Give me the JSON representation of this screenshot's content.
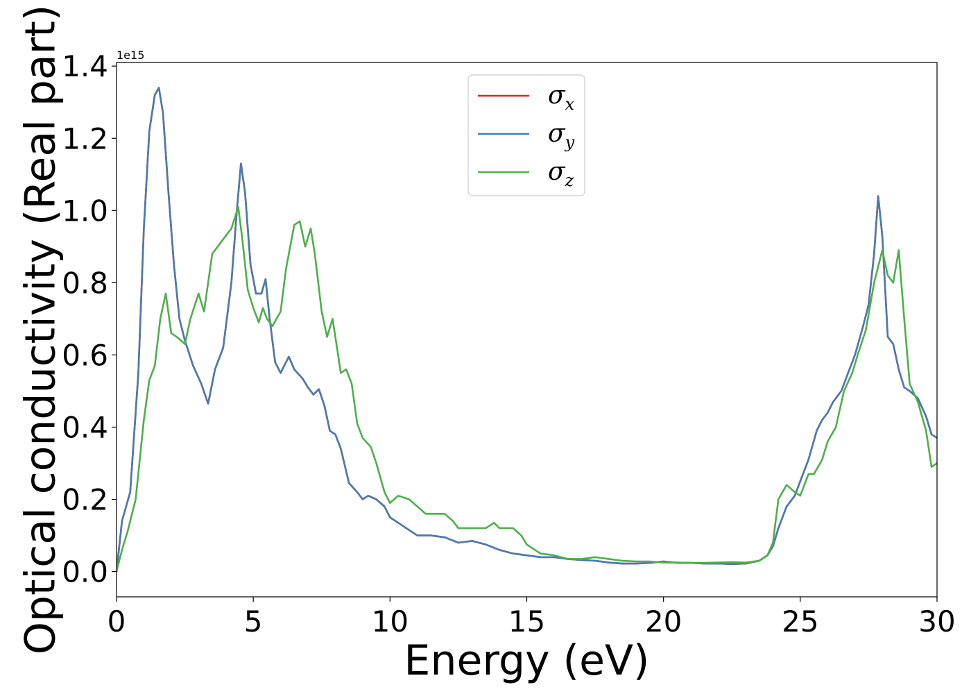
{
  "chart_data": {
    "type": "line",
    "title": "",
    "xlabel": "Energy (eV)",
    "ylabel": "Optical conductivity (Real part)",
    "y_offset_label": "1e15",
    "xlim": [
      0,
      30
    ],
    "ylim": [
      -0.07,
      1.41
    ],
    "x_ticks": [
      0,
      5,
      10,
      15,
      20,
      25,
      30
    ],
    "x_tick_labels": [
      "0",
      "5",
      "10",
      "15",
      "20",
      "25",
      "30"
    ],
    "y_ticks": [
      0.0,
      0.2,
      0.4,
      0.6,
      0.8,
      1.0,
      1.2,
      1.4
    ],
    "y_tick_labels": [
      "0.0",
      "0.2",
      "0.4",
      "0.6",
      "0.8",
      "1.0",
      "1.2",
      "1.4"
    ],
    "grid": false,
    "legend_position": "upper center",
    "series": [
      {
        "name": "σx",
        "symbol": "σ",
        "subscript": "x",
        "color": "#d62728",
        "x": [
          0,
          0.2,
          0.5,
          0.8,
          1.0,
          1.2,
          1.4,
          1.55,
          1.7,
          1.9,
          2.1,
          2.3,
          2.5,
          2.8,
          3.1,
          3.35,
          3.6,
          3.9,
          4.2,
          4.4,
          4.55,
          4.7,
          4.9,
          5.1,
          5.3,
          5.45,
          5.6,
          5.8,
          6.0,
          6.3,
          6.5,
          6.8,
          7.0,
          7.2,
          7.4,
          7.6,
          7.8,
          8.0,
          8.2,
          8.5,
          8.8,
          9.0,
          9.2,
          9.5,
          9.8,
          10.0,
          10.3,
          10.7,
          11.0,
          11.5,
          12.0,
          12.5,
          13.0,
          13.5,
          14.0,
          14.5,
          15.0,
          15.5,
          16.0,
          16.5,
          17.0,
          17.5,
          18.0,
          18.5,
          19.0,
          19.5,
          20.0,
          20.5,
          21.0,
          21.5,
          22.0,
          22.5,
          23.0,
          23.5,
          23.8,
          24.0,
          24.2,
          24.5,
          24.8,
          25.0,
          25.3,
          25.6,
          25.8,
          26.0,
          26.2,
          26.5,
          26.8,
          27.0,
          27.3,
          27.5,
          27.7,
          27.85,
          28.0,
          28.2,
          28.4,
          28.6,
          28.8,
          29.0,
          29.3,
          29.6,
          29.8,
          30.0
        ],
        "values": [
          0.0,
          0.14,
          0.22,
          0.55,
          0.95,
          1.22,
          1.32,
          1.34,
          1.27,
          1.05,
          0.85,
          0.7,
          0.64,
          0.57,
          0.52,
          0.465,
          0.56,
          0.62,
          0.8,
          1.0,
          1.13,
          1.05,
          0.85,
          0.77,
          0.77,
          0.81,
          0.7,
          0.58,
          0.55,
          0.595,
          0.56,
          0.535,
          0.51,
          0.49,
          0.505,
          0.46,
          0.39,
          0.38,
          0.34,
          0.245,
          0.22,
          0.2,
          0.21,
          0.2,
          0.18,
          0.15,
          0.135,
          0.115,
          0.1,
          0.1,
          0.095,
          0.08,
          0.085,
          0.075,
          0.06,
          0.05,
          0.045,
          0.04,
          0.04,
          0.035,
          0.032,
          0.03,
          0.025,
          0.022,
          0.022,
          0.024,
          0.028,
          0.024,
          0.024,
          0.022,
          0.022,
          0.021,
          0.022,
          0.03,
          0.045,
          0.07,
          0.12,
          0.18,
          0.21,
          0.25,
          0.31,
          0.39,
          0.42,
          0.44,
          0.47,
          0.5,
          0.56,
          0.6,
          0.68,
          0.74,
          0.88,
          1.04,
          0.93,
          0.65,
          0.63,
          0.56,
          0.51,
          0.5,
          0.48,
          0.43,
          0.38,
          0.37
        ]
      },
      {
        "name": "σy",
        "symbol": "σ",
        "subscript": "y",
        "color": "#4a7bb0",
        "x": [
          0,
          0.2,
          0.5,
          0.8,
          1.0,
          1.2,
          1.4,
          1.55,
          1.7,
          1.9,
          2.1,
          2.3,
          2.5,
          2.8,
          3.1,
          3.35,
          3.6,
          3.9,
          4.2,
          4.4,
          4.55,
          4.7,
          4.9,
          5.1,
          5.3,
          5.45,
          5.6,
          5.8,
          6.0,
          6.3,
          6.5,
          6.8,
          7.0,
          7.2,
          7.4,
          7.6,
          7.8,
          8.0,
          8.2,
          8.5,
          8.8,
          9.0,
          9.2,
          9.5,
          9.8,
          10.0,
          10.3,
          10.7,
          11.0,
          11.5,
          12.0,
          12.5,
          13.0,
          13.5,
          14.0,
          14.5,
          15.0,
          15.5,
          16.0,
          16.5,
          17.0,
          17.5,
          18.0,
          18.5,
          19.0,
          19.5,
          20.0,
          20.5,
          21.0,
          21.5,
          22.0,
          22.5,
          23.0,
          23.5,
          23.8,
          24.0,
          24.2,
          24.5,
          24.8,
          25.0,
          25.3,
          25.6,
          25.8,
          26.0,
          26.2,
          26.5,
          26.8,
          27.0,
          27.3,
          27.5,
          27.7,
          27.85,
          28.0,
          28.2,
          28.4,
          28.6,
          28.8,
          29.0,
          29.3,
          29.6,
          29.8,
          30.0
        ],
        "values": [
          0.0,
          0.14,
          0.22,
          0.55,
          0.95,
          1.22,
          1.32,
          1.34,
          1.27,
          1.05,
          0.85,
          0.7,
          0.64,
          0.57,
          0.52,
          0.465,
          0.56,
          0.62,
          0.8,
          1.0,
          1.13,
          1.05,
          0.85,
          0.77,
          0.77,
          0.81,
          0.7,
          0.58,
          0.55,
          0.595,
          0.56,
          0.535,
          0.51,
          0.49,
          0.505,
          0.46,
          0.39,
          0.38,
          0.34,
          0.245,
          0.22,
          0.2,
          0.21,
          0.2,
          0.18,
          0.15,
          0.135,
          0.115,
          0.1,
          0.1,
          0.095,
          0.08,
          0.085,
          0.075,
          0.06,
          0.05,
          0.045,
          0.04,
          0.04,
          0.035,
          0.032,
          0.03,
          0.025,
          0.022,
          0.022,
          0.024,
          0.028,
          0.024,
          0.024,
          0.022,
          0.022,
          0.021,
          0.022,
          0.03,
          0.045,
          0.07,
          0.12,
          0.18,
          0.21,
          0.25,
          0.31,
          0.39,
          0.42,
          0.44,
          0.47,
          0.5,
          0.56,
          0.6,
          0.68,
          0.74,
          0.88,
          1.04,
          0.93,
          0.65,
          0.63,
          0.56,
          0.51,
          0.5,
          0.48,
          0.43,
          0.38,
          0.37
        ]
      },
      {
        "name": "σz",
        "symbol": "σ",
        "subscript": "z",
        "color": "#4daf4a",
        "x": [
          0,
          0.2,
          0.4,
          0.7,
          1.0,
          1.2,
          1.4,
          1.6,
          1.8,
          2.0,
          2.2,
          2.5,
          2.7,
          3.0,
          3.2,
          3.5,
          3.7,
          4.0,
          4.2,
          4.45,
          4.6,
          4.8,
          5.0,
          5.2,
          5.35,
          5.5,
          5.7,
          6.0,
          6.2,
          6.5,
          6.7,
          6.9,
          7.1,
          7.25,
          7.5,
          7.7,
          7.9,
          8.0,
          8.2,
          8.4,
          8.6,
          8.8,
          9.0,
          9.3,
          9.5,
          9.8,
          10.0,
          10.3,
          10.7,
          11.0,
          11.3,
          11.7,
          12.0,
          12.3,
          12.5,
          13.0,
          13.5,
          13.8,
          14.0,
          14.5,
          14.8,
          15.0,
          15.5,
          16.0,
          16.5,
          17.0,
          17.5,
          18.0,
          18.5,
          19.0,
          19.5,
          20.0,
          20.5,
          21.0,
          21.5,
          22.0,
          22.5,
          23.0,
          23.5,
          23.8,
          24.0,
          24.2,
          24.5,
          24.8,
          25.0,
          25.3,
          25.5,
          25.8,
          26.0,
          26.3,
          26.6,
          26.9,
          27.1,
          27.4,
          27.7,
          28.0,
          28.2,
          28.4,
          28.6,
          28.8,
          29.0,
          29.3,
          29.6,
          29.8,
          30.0
        ],
        "values": [
          0.0,
          0.06,
          0.11,
          0.2,
          0.42,
          0.53,
          0.57,
          0.7,
          0.77,
          0.66,
          0.65,
          0.63,
          0.7,
          0.77,
          0.72,
          0.88,
          0.9,
          0.93,
          0.95,
          1.01,
          0.92,
          0.78,
          0.73,
          0.69,
          0.73,
          0.7,
          0.68,
          0.72,
          0.84,
          0.96,
          0.97,
          0.9,
          0.95,
          0.88,
          0.72,
          0.65,
          0.7,
          0.65,
          0.55,
          0.56,
          0.52,
          0.41,
          0.37,
          0.345,
          0.3,
          0.22,
          0.19,
          0.21,
          0.2,
          0.18,
          0.16,
          0.16,
          0.16,
          0.14,
          0.12,
          0.12,
          0.12,
          0.135,
          0.12,
          0.12,
          0.1,
          0.075,
          0.05,
          0.045,
          0.035,
          0.035,
          0.04,
          0.035,
          0.03,
          0.028,
          0.028,
          0.025,
          0.025,
          0.024,
          0.024,
          0.025,
          0.026,
          0.025,
          0.03,
          0.045,
          0.08,
          0.2,
          0.24,
          0.22,
          0.21,
          0.27,
          0.27,
          0.31,
          0.36,
          0.4,
          0.5,
          0.55,
          0.6,
          0.67,
          0.8,
          0.89,
          0.82,
          0.8,
          0.89,
          0.7,
          0.52,
          0.47,
          0.39,
          0.29,
          0.3
        ]
      }
    ]
  }
}
